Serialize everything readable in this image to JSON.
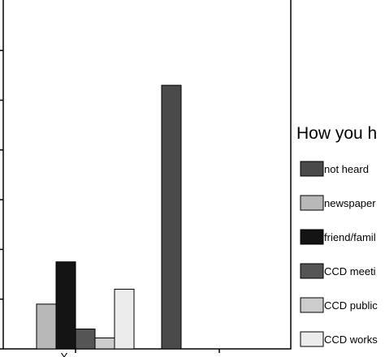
{
  "chart_data": {
    "type": "bar",
    "title": "",
    "xlabel": "",
    "ylabel": "",
    "ylim": [
      0,
      6
    ],
    "grid": false,
    "legend_position": "right",
    "legend_title": "How you h",
    "categories": [
      "Y",
      ""
    ],
    "series": [
      {
        "name": "not heard",
        "color": "#4a4a4a",
        "values": [
          null,
          5.3
        ]
      },
      {
        "name": "newspaper",
        "color": "#b8b8b8",
        "values": [
          0.9,
          null
        ]
      },
      {
        "name": "friend/famil",
        "color": "#141414",
        "values": [
          1.75,
          null
        ]
      },
      {
        "name": "CCD meeti",
        "color": "#555555",
        "values": [
          0.4,
          null
        ]
      },
      {
        "name": "CCD public",
        "color": "#cccccc",
        "values": [
          0.22,
          null
        ]
      },
      {
        "name": "CCD works",
        "color": "#ececec",
        "values": [
          1.2,
          null
        ]
      }
    ]
  }
}
